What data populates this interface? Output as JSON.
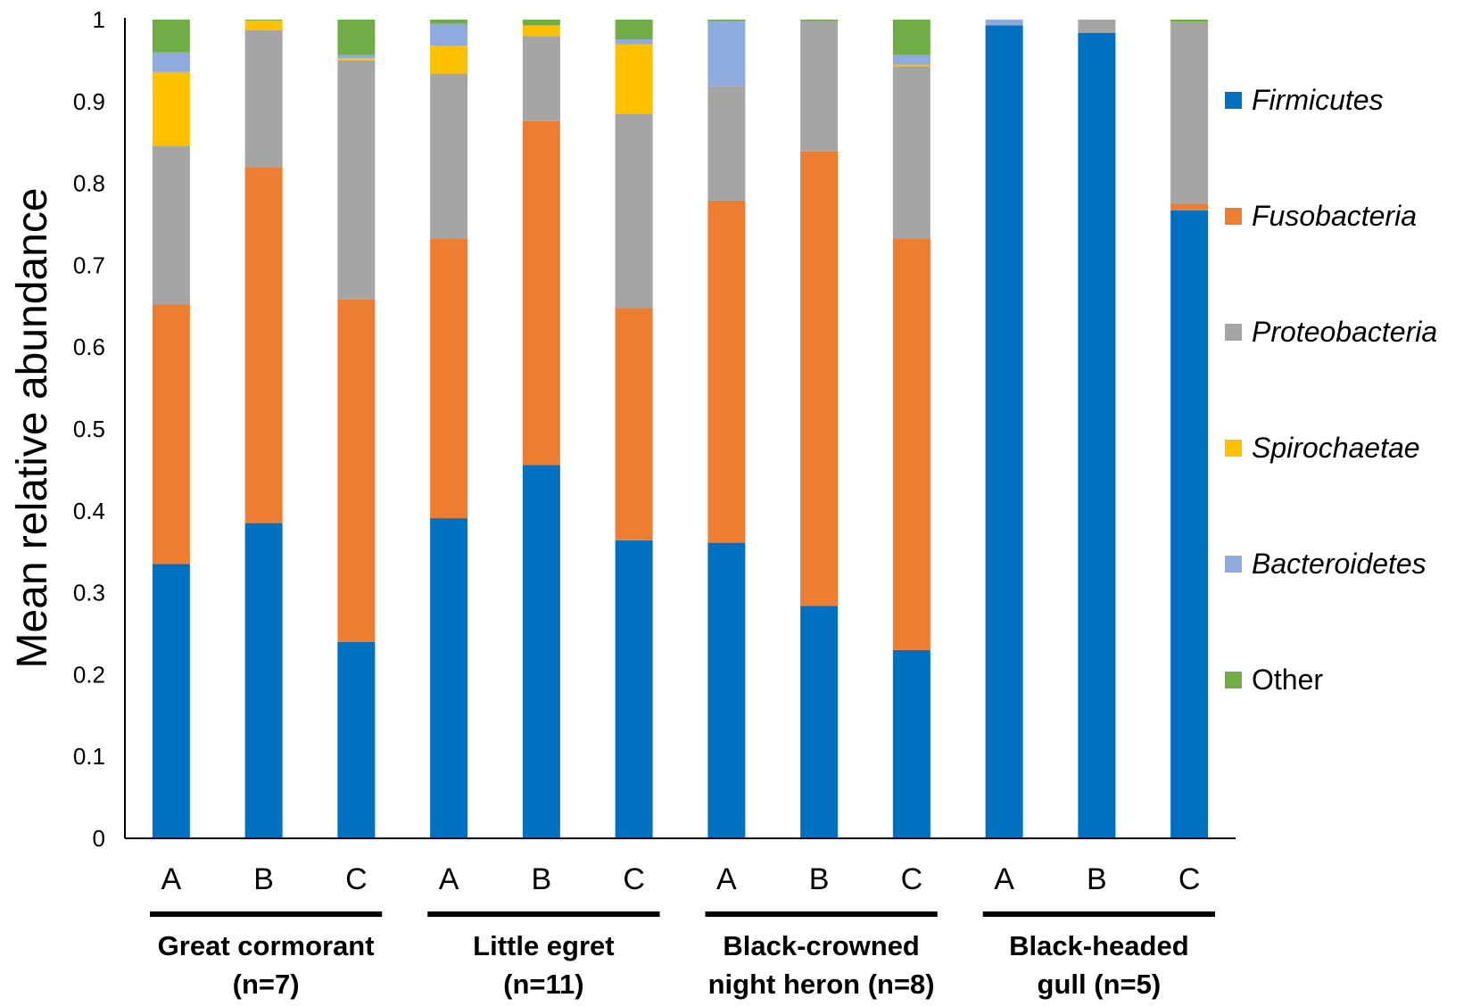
{
  "chart_data": {
    "type": "bar",
    "stacked": true,
    "title": "",
    "xlabel": "",
    "ylabel": "Mean relative abundance",
    "ylim": [
      0,
      1
    ],
    "yticks": [
      "0",
      "0.1",
      "0.2",
      "0.3",
      "0.4",
      "0.5",
      "0.6",
      "0.7",
      "0.8",
      "0.9",
      "1"
    ],
    "categories": [
      "A",
      "B",
      "C",
      "A",
      "B",
      "C",
      "A",
      "B",
      "C",
      "A",
      "B",
      "C"
    ],
    "groups": [
      {
        "lines": [
          "Great cormorant",
          "(n=7)"
        ]
      },
      {
        "lines": [
          "Little egret",
          "(n=11)"
        ]
      },
      {
        "lines": [
          "Black-crowned",
          "night heron (n=8)"
        ]
      },
      {
        "lines": [
          "Black-headed",
          "gull (n=5)"
        ]
      }
    ],
    "legend_position": "right",
    "series": [
      {
        "name": "Firmicutes",
        "italic": true,
        "color": "#0070C0",
        "values": [
          0.335,
          0.385,
          0.24,
          0.391,
          0.456,
          0.364,
          0.361,
          0.284,
          0.23,
          0.993,
          0.984,
          0.767
        ]
      },
      {
        "name": "Fusobacteria",
        "italic": true,
        "color": "#ED7D31",
        "values": [
          0.317,
          0.435,
          0.418,
          0.341,
          0.42,
          0.284,
          0.418,
          0.555,
          0.503,
          0.0,
          0.0,
          0.008
        ]
      },
      {
        "name": "Proteobacteria",
        "italic": true,
        "color": "#A5A5A5",
        "values": [
          0.194,
          0.167,
          0.292,
          0.202,
          0.104,
          0.237,
          0.14,
          0.159,
          0.21,
          0.0,
          0.016,
          0.222
        ]
      },
      {
        "name": "Spirochaetae",
        "italic": true,
        "color": "#FFC000",
        "values": [
          0.09,
          0.012,
          0.003,
          0.034,
          0.013,
          0.085,
          0.0,
          0.0,
          0.002,
          0.0,
          0.0,
          0.0
        ]
      },
      {
        "name": "Bacteroidetes",
        "italic": true,
        "color": "#8FAADC",
        "values": [
          0.024,
          0.0,
          0.004,
          0.027,
          0.0,
          0.006,
          0.079,
          0.0,
          0.012,
          0.007,
          0.0,
          0.0
        ]
      },
      {
        "name": "Other",
        "italic": false,
        "color": "#70AD47",
        "values": [
          0.04,
          0.001,
          0.043,
          0.005,
          0.007,
          0.024,
          0.002,
          0.002,
          0.043,
          0.0,
          0.0,
          0.003
        ]
      }
    ]
  }
}
